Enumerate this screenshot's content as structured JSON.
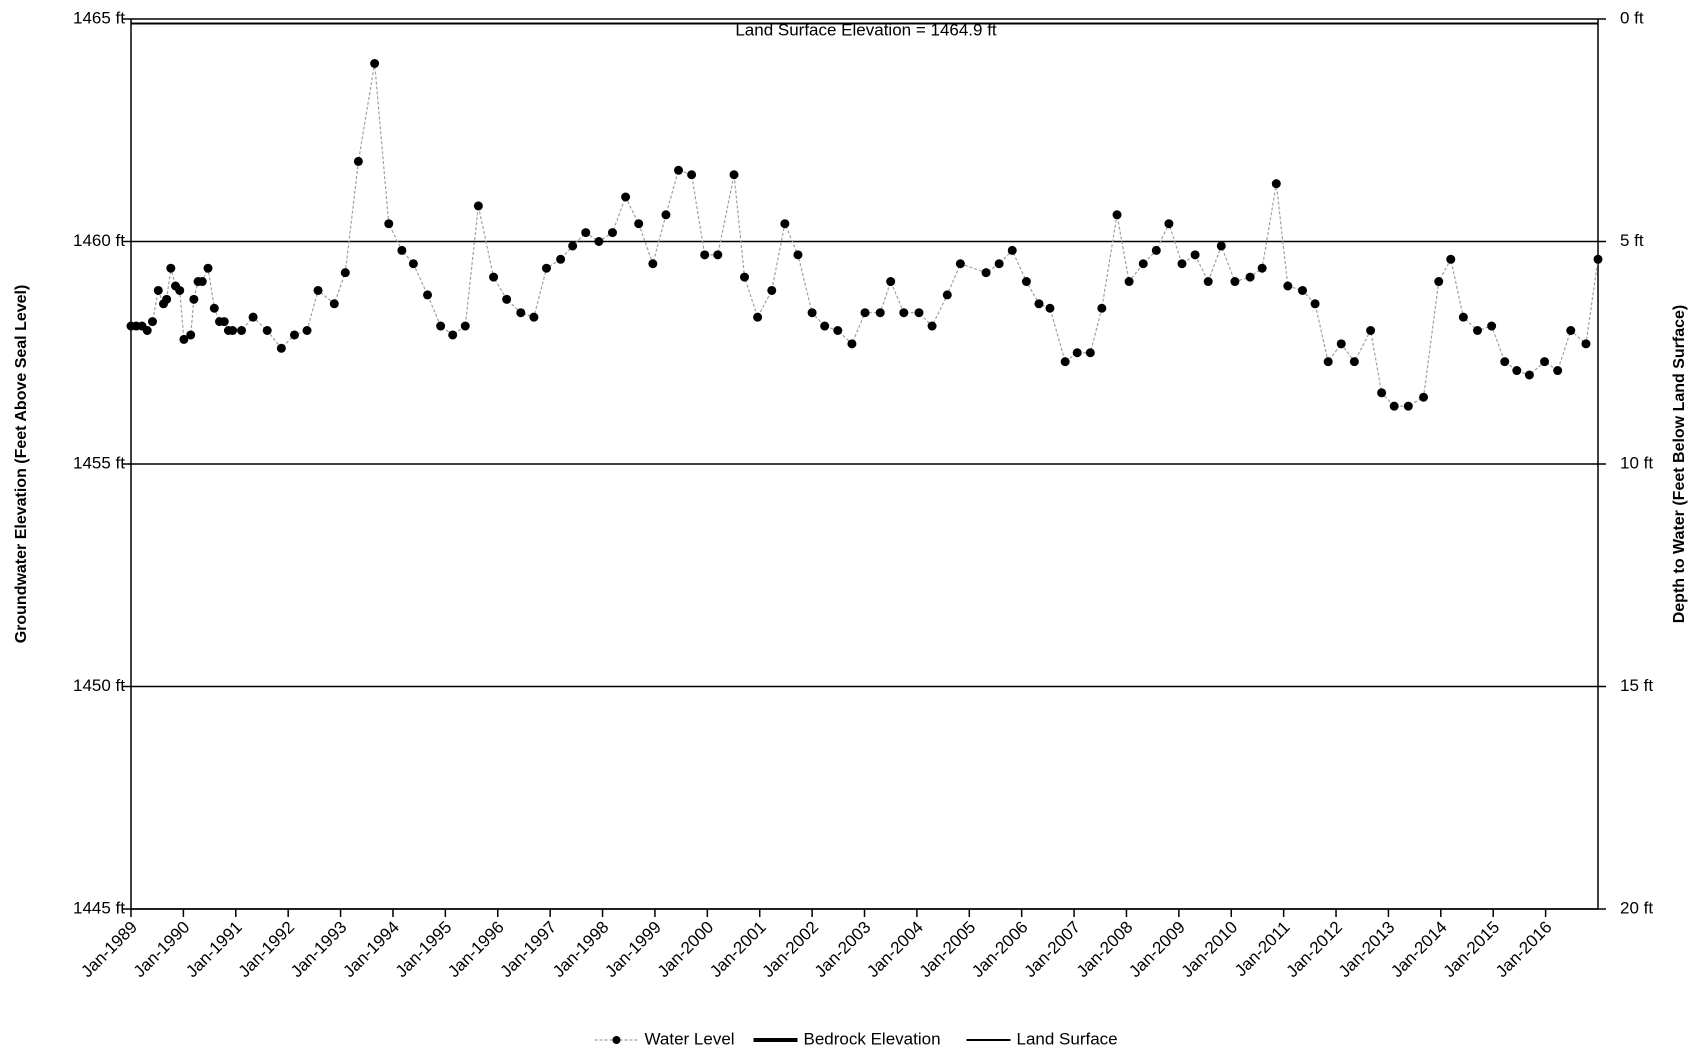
{
  "chart_data": {
    "type": "line",
    "annotation": "Land Surface Elevation = 1464.9 ft",
    "ylabel": "Groundwater Elevation (Feet Above Seal Level)",
    "y2label": "Depth to Water (Feet Below Land Surface)",
    "xlim": [
      1989,
      2017
    ],
    "xticks": [
      {
        "value": 1989,
        "label": "Jan-1989"
      },
      {
        "value": 1990,
        "label": "Jan-1990"
      },
      {
        "value": 1991,
        "label": "Jan-1991"
      },
      {
        "value": 1992,
        "label": "Jan-1992"
      },
      {
        "value": 1993,
        "label": "Jan-1993"
      },
      {
        "value": 1994,
        "label": "Jan-1994"
      },
      {
        "value": 1995,
        "label": "Jan-1995"
      },
      {
        "value": 1996,
        "label": "Jan-1996"
      },
      {
        "value": 1997,
        "label": "Jan-1997"
      },
      {
        "value": 1998,
        "label": "Jan-1998"
      },
      {
        "value": 1999,
        "label": "Jan-1999"
      },
      {
        "value": 2000,
        "label": "Jan-2000"
      },
      {
        "value": 2001,
        "label": "Jan-2001"
      },
      {
        "value": 2002,
        "label": "Jan-2002"
      },
      {
        "value": 2003,
        "label": "Jan-2003"
      },
      {
        "value": 2004,
        "label": "Jan-2004"
      },
      {
        "value": 2005,
        "label": "Jan-2005"
      },
      {
        "value": 2006,
        "label": "Jan-2006"
      },
      {
        "value": 2007,
        "label": "Jan-2007"
      },
      {
        "value": 2008,
        "label": "Jan-2008"
      },
      {
        "value": 2009,
        "label": "Jan-2009"
      },
      {
        "value": 2010,
        "label": "Jan-2010"
      },
      {
        "value": 2011,
        "label": "Jan-2011"
      },
      {
        "value": 2012,
        "label": "Jan-2012"
      },
      {
        "value": 2013,
        "label": "Jan-2013"
      },
      {
        "value": 2014,
        "label": "Jan-2014"
      },
      {
        "value": 2015,
        "label": "Jan-2015"
      },
      {
        "value": 2016,
        "label": "Jan-2016"
      }
    ],
    "ylim": [
      1445,
      1465
    ],
    "yticks": [
      {
        "value": 1445,
        "label": "1445 ft"
      },
      {
        "value": 1450,
        "label": "1450 ft"
      },
      {
        "value": 1455,
        "label": "1455 ft"
      },
      {
        "value": 1460,
        "label": "1460 ft"
      },
      {
        "value": 1465,
        "label": "1465 ft"
      }
    ],
    "y2lim": [
      20,
      0
    ],
    "y2ticks": [
      {
        "value": 20,
        "label": "20 ft"
      },
      {
        "value": 15,
        "label": "15 ft"
      },
      {
        "value": 10,
        "label": "10 ft"
      },
      {
        "value": 5,
        "label": "5 ft"
      },
      {
        "value": 0,
        "label": "0 ft"
      }
    ],
    "grid": true,
    "legend": "bottom",
    "series": [
      {
        "name": "Water Level",
        "color": "#a0a0a0",
        "marker_color": "#000000",
        "x": [
          1989.0,
          1989.1,
          1989.21,
          1989.31,
          1989.41,
          1989.52,
          1989.62,
          1989.68,
          1989.76,
          1989.85,
          1989.93,
          1990.01,
          1990.14,
          1990.2,
          1990.28,
          1990.36,
          1990.47,
          1990.59,
          1990.69,
          1990.78,
          1990.86,
          1990.94,
          1991.11,
          1991.33,
          1991.6,
          1991.87,
          1992.12,
          1992.36,
          1992.57,
          1992.88,
          1993.09,
          1993.34,
          1993.65,
          1993.92,
          1994.17,
          1994.39,
          1994.66,
          1994.91,
          1995.14,
          1995.38,
          1995.63,
          1995.92,
          1996.17,
          1996.44,
          1996.69,
          1996.93,
          1997.2,
          1997.43,
          1997.68,
          1997.93,
          1998.19,
          1998.44,
          1998.69,
          1998.96,
          1999.21,
          1999.45,
          1999.7,
          1999.95,
          2000.2,
          2000.51,
          2000.71,
          2000.96,
          2001.23,
          2001.48,
          2001.73,
          2002.0,
          2002.24,
          2002.49,
          2002.76,
          2003.01,
          2003.3,
          2003.5,
          2003.75,
          2004.04,
          2004.29,
          2004.58,
          2004.83,
          2005.32,
          2005.57,
          2005.82,
          2006.09,
          2006.33,
          2006.54,
          2006.83,
          2007.06,
          2007.31,
          2007.53,
          2007.82,
          2008.05,
          2008.32,
          2008.57,
          2008.81,
          2009.06,
          2009.31,
          2009.56,
          2009.81,
          2010.07,
          2010.36,
          2010.59,
          2010.86,
          2011.08,
          2011.36,
          2011.6,
          2011.85,
          2012.1,
          2012.35,
          2012.66,
          2012.87,
          2013.11,
          2013.38,
          2013.67,
          2013.96,
          2014.19,
          2014.43,
          2014.7,
          2014.97,
          2015.22,
          2015.45,
          2015.69,
          2015.98,
          2016.23,
          2016.48,
          2016.77,
          2017.0
        ],
        "values": [
          1458.1,
          1458.1,
          1458.1,
          1458.0,
          1458.2,
          1458.9,
          1458.6,
          1458.7,
          1459.4,
          1459.0,
          1458.9,
          1457.8,
          1457.9,
          1458.7,
          1459.1,
          1459.1,
          1459.4,
          1458.5,
          1458.2,
          1458.2,
          1458.0,
          1458.0,
          1458.0,
          1458.3,
          1458.0,
          1457.6,
          1457.9,
          1458.0,
          1458.9,
          1458.6,
          1459.3,
          1461.8,
          1464.0,
          1460.4,
          1459.8,
          1459.5,
          1458.8,
          1458.1,
          1457.9,
          1458.1,
          1460.8,
          1459.2,
          1458.7,
          1458.4,
          1458.3,
          1459.4,
          1459.6,
          1459.9,
          1460.2,
          1460.0,
          1460.2,
          1461.0,
          1460.4,
          1459.5,
          1460.6,
          1461.6,
          1461.5,
          1459.7,
          1459.7,
          1461.5,
          1459.2,
          1458.3,
          1458.9,
          1460.4,
          1459.7,
          1458.4,
          1458.1,
          1458.0,
          1457.7,
          1458.4,
          1458.4,
          1459.1,
          1458.4,
          1458.4,
          1458.1,
          1458.8,
          1459.5,
          1459.3,
          1459.5,
          1459.8,
          1459.1,
          1458.6,
          1458.5,
          1457.3,
          1457.5,
          1457.5,
          1458.5,
          1460.6,
          1459.1,
          1459.5,
          1459.8,
          1460.4,
          1459.5,
          1459.7,
          1459.1,
          1459.9,
          1459.1,
          1459.2,
          1459.4,
          1461.3,
          1459.0,
          1458.9,
          1458.6,
          1457.3,
          1457.7,
          1457.3,
          1458.0,
          1456.6,
          1456.3,
          1456.3,
          1456.5,
          1459.1,
          1459.6,
          1458.3,
          1458.0,
          1458.1,
          1457.3,
          1457.1,
          1457.0,
          1457.3,
          1457.1,
          1458.0,
          1457.7,
          1459.6
        ]
      },
      {
        "name": "Bedrock Elevation",
        "color": "#000000",
        "width": 4,
        "x": [],
        "values": []
      },
      {
        "name": "Land Surface",
        "color": "#000000",
        "width": 2,
        "x": [
          1989,
          2017
        ],
        "values": [
          1464.9,
          1464.9
        ]
      }
    ]
  }
}
